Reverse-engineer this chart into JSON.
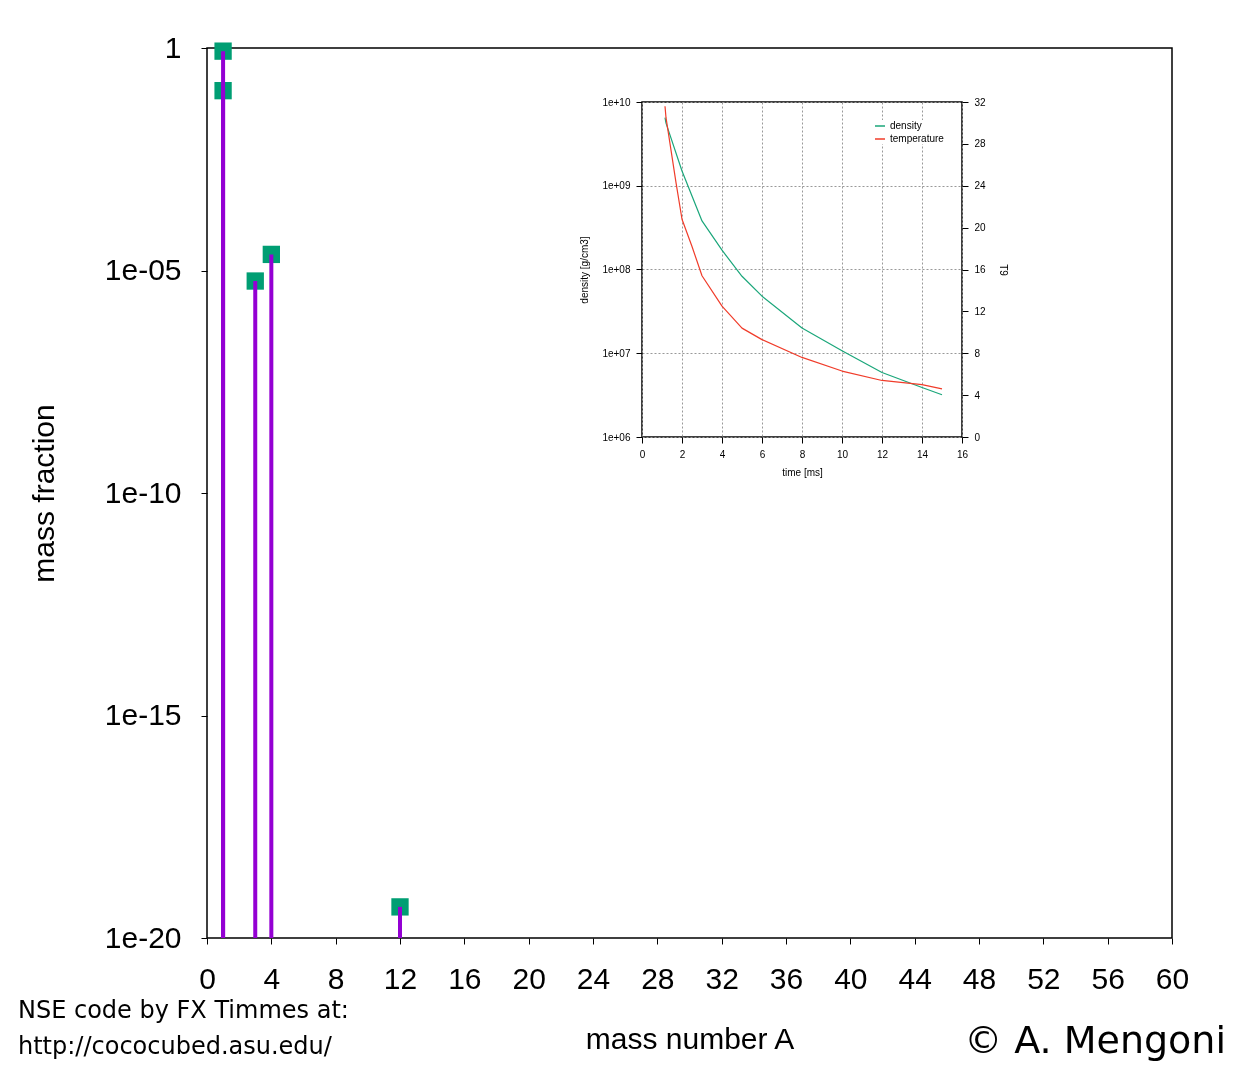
{
  "chart_data": [
    {
      "type": "scatter",
      "xlabel": "mass number A",
      "ylabel": "mass fraction",
      "x": [
        1,
        3,
        4,
        12
      ],
      "series": [
        {
          "type": "bar",
          "color": "#9400d3",
          "values": [
            0.85,
            5.8e-06,
            2.3e-05,
            5e-20
          ]
        },
        {
          "color": "#009e73",
          "marker": "square",
          "values": [
            0.85,
            5.8e-06,
            2.3e-05,
            5e-20
          ]
        },
        {
          "type": "bar",
          "color": "#9400d3",
          "x": [
            1
          ],
          "values": [
            0.11
          ]
        },
        {
          "color": "#009e73",
          "marker": "square",
          "x": [
            1
          ],
          "values": [
            0.11
          ]
        }
      ],
      "log": "y",
      "xlim": [
        0,
        60
      ],
      "xticks": [
        0,
        4,
        8,
        12,
        16,
        20,
        24,
        28,
        32,
        36,
        40,
        44,
        48,
        52,
        56,
        60
      ],
      "ylim": [
        1e-20,
        1
      ],
      "yticks": [
        {
          "value": 1e-20,
          "label": "1e-20"
        },
        {
          "value": 1e-15,
          "label": "1e-15"
        },
        {
          "value": 1e-10,
          "label": "1e-10"
        },
        {
          "value": 1e-05,
          "label": "1e-05"
        },
        1
      ],
      "annotations": [
        "NSE code by FX Timmes at:\nhttp://cococubed.asu.edu/",
        "© A. Mengoni"
      ]
    },
    {
      "type": "line",
      "xlabel": "time [ms]",
      "ylabel": "density [g/cm3]",
      "y2label": "T9",
      "series": [
        {
          "name": "density",
          "color": "#1aa67a",
          "x": [
            1.15,
            1.2,
            2,
            3,
            4,
            5,
            6,
            8,
            10,
            12,
            14,
            15
          ],
          "values": [
            6500000000.0,
            5600000000.0,
            1500000000.0,
            380000000.0,
            170000000.0,
            83000000.0,
            48000000.0,
            20000000.0,
            10700000.0,
            5900000.0,
            3900000.0,
            3200000.0
          ]
        },
        {
          "name": "temperature",
          "color": "#f03c2a",
          "axis": "y2",
          "x": [
            1.15,
            1.2,
            1.7,
            2,
            2.5,
            3,
            4,
            5,
            6,
            8,
            10,
            12,
            14,
            15
          ],
          "values": [
            31.6,
            30.5,
            24.3,
            20.8,
            18.2,
            15.4,
            12.5,
            10.4,
            9.3,
            7.6,
            6.3,
            5.4,
            5.0,
            4.6
          ]
        }
      ],
      "log": "y",
      "grid": true,
      "legend": "top right",
      "xlim": [
        0,
        16
      ],
      "xticks": [
        0,
        2,
        4,
        6,
        8,
        10,
        12,
        14,
        16
      ],
      "ylim": [
        1000000.0,
        10000000000.0
      ],
      "yticks": [
        {
          "value": 1000000.0,
          "label": "1e+06"
        },
        {
          "value": 10000000.0,
          "label": "1e+07"
        },
        {
          "value": 100000000.0,
          "label": "1e+08"
        },
        {
          "value": 1000000000.0,
          "label": "1e+09"
        },
        {
          "value": 10000000000.0,
          "label": "1e+10"
        }
      ],
      "y2lim": [
        0,
        32
      ],
      "y2ticks": [
        0,
        4,
        8,
        12,
        16,
        20,
        24,
        28,
        32
      ]
    }
  ]
}
